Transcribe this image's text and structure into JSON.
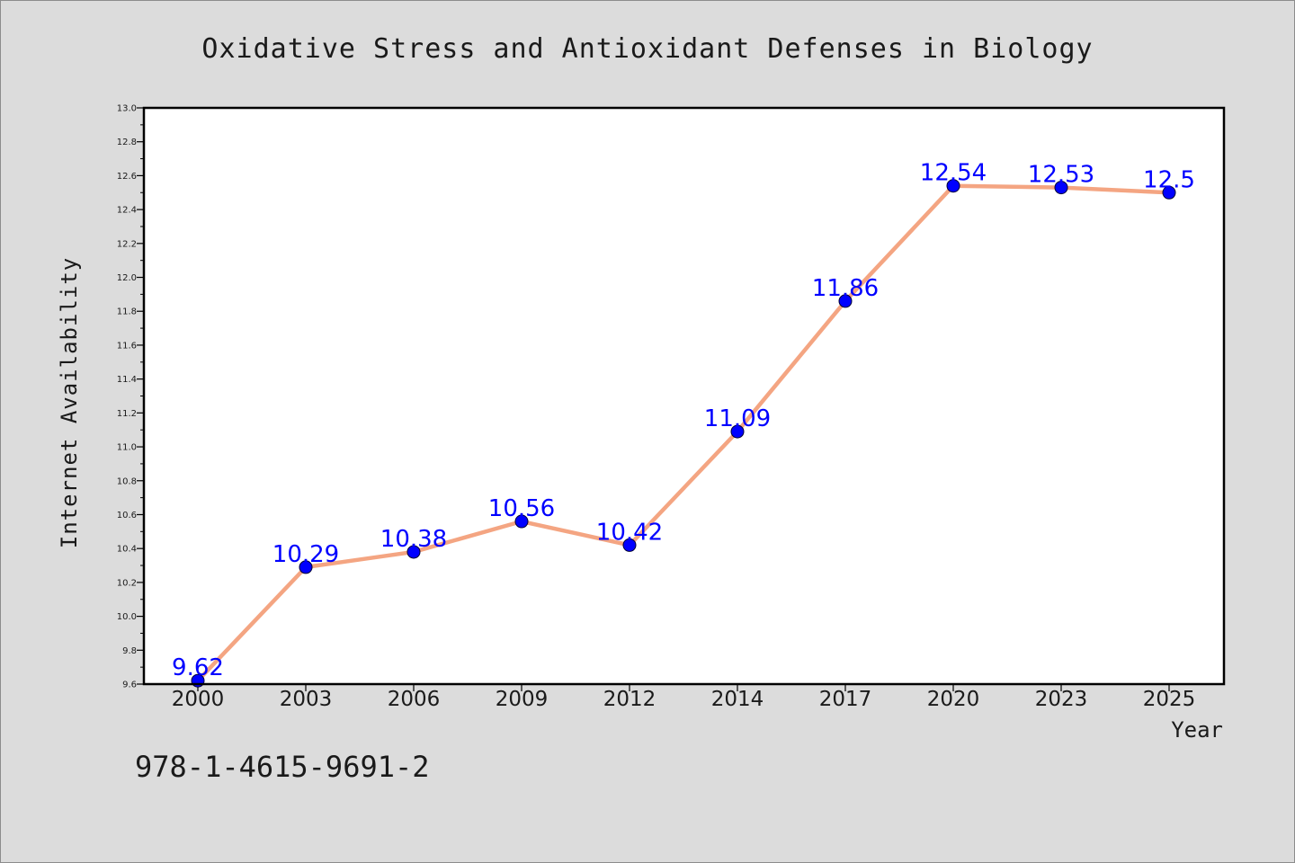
{
  "chart_data": {
    "type": "line",
    "title": "Oxidative Stress and Antioxidant Defenses in Biology",
    "xlabel": "Year",
    "ylabel": "Internet Availability",
    "categories": [
      "2000",
      "2003",
      "2006",
      "2009",
      "2012",
      "2014",
      "2017",
      "2020",
      "2023",
      "2025"
    ],
    "values": [
      9.62,
      10.29,
      10.38,
      10.56,
      10.42,
      11.09,
      11.86,
      12.54,
      12.53,
      12.5
    ],
    "data_labels": [
      "9.62",
      "10.29",
      "10.38",
      "10.56",
      "10.42",
      "11.09",
      "11.86",
      "12.54",
      "12.53",
      "12.5"
    ],
    "ylim": [
      9.6,
      13.0
    ],
    "yticks": [
      "9.6",
      "9.8",
      "10.0",
      "10.2",
      "10.4",
      "10.6",
      "10.8",
      "11.0",
      "11.2",
      "11.4",
      "11.6",
      "11.8",
      "12.0",
      "12.2",
      "12.4",
      "12.6",
      "12.8",
      "13.0"
    ],
    "grid": false,
    "line_color": "#f4a582",
    "marker_color": "#0000ff",
    "label_color": "#0000ff",
    "plot_background": "#ffffff",
    "figure_background": "#dcdcdc"
  },
  "footer": {
    "isbn": "978-1-4615-9691-2"
  }
}
